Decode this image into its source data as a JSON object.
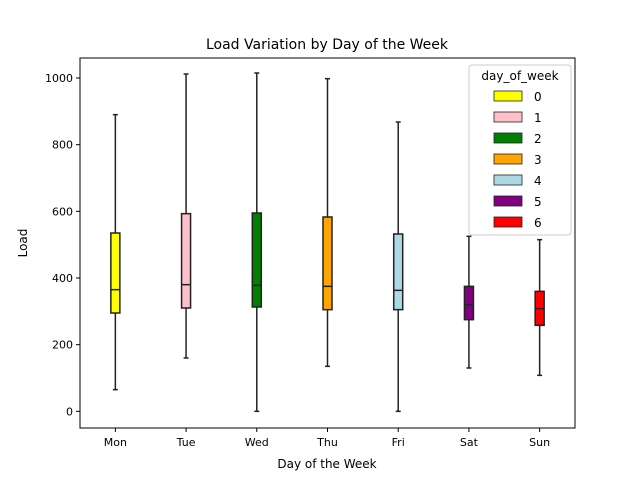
{
  "chart_data": {
    "type": "box",
    "title": "Load Variation by Day of the Week",
    "xlabel": "Day of the Week",
    "ylabel": "Load",
    "categories": [
      "Mon",
      "Tue",
      "Wed",
      "Thu",
      "Fri",
      "Sat",
      "Sun"
    ],
    "yticks": [
      "0",
      "200",
      "400",
      "600",
      "800",
      "1000"
    ],
    "ytick_values": [
      0,
      200,
      400,
      600,
      800,
      1000
    ],
    "ylim": [
      -50,
      1060
    ],
    "grid": false,
    "legend": {
      "title": "day_of_week",
      "placement": "top-right",
      "entries": [
        "0",
        "1",
        "2",
        "3",
        "4",
        "5",
        "6"
      ]
    },
    "series": [
      {
        "name": "0",
        "category": "Mon",
        "color": "#ffff00",
        "min": 65,
        "q1": 295,
        "median": 365,
        "q3": 535,
        "max": 890
      },
      {
        "name": "1",
        "category": "Tue",
        "color": "#ffc0cb",
        "min": 160,
        "q1": 310,
        "median": 380,
        "q3": 593,
        "max": 1012
      },
      {
        "name": "2",
        "category": "Wed",
        "color": "#008000",
        "min": 0,
        "q1": 313,
        "median": 378,
        "q3": 595,
        "max": 1015
      },
      {
        "name": "3",
        "category": "Thu",
        "color": "#ffa500",
        "min": 135,
        "q1": 305,
        "median": 375,
        "q3": 583,
        "max": 998
      },
      {
        "name": "4",
        "category": "Fri",
        "color": "#add8e6",
        "min": 0,
        "q1": 305,
        "median": 363,
        "q3": 532,
        "max": 868
      },
      {
        "name": "5",
        "category": "Sat",
        "color": "#800080",
        "min": 130,
        "q1": 275,
        "median": 320,
        "q3": 375,
        "max": 525
      },
      {
        "name": "6",
        "category": "Sun",
        "color": "#ff0000",
        "min": 108,
        "q1": 258,
        "median": 308,
        "q3": 360,
        "max": 515
      }
    ]
  }
}
